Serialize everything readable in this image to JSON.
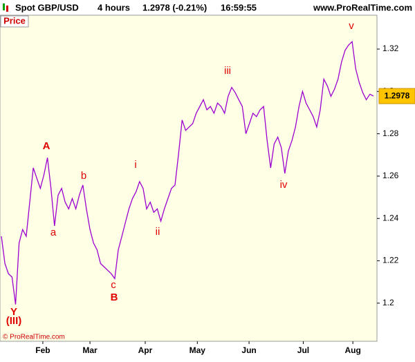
{
  "header": {
    "instrument": "Spot GBP/USD",
    "interval": "4 hours",
    "quote": "1.2978 (-0.21%)",
    "time": "16:59:55",
    "site": "www.ProRealTime.com"
  },
  "chart_data": {
    "type": "line",
    "panel_label": "Price",
    "copyright": "© ProRealTime.com",
    "series": [
      {
        "color": "#9b00d0",
        "values": [
          1.2316,
          1.2187,
          1.2139,
          1.2123,
          1.1994,
          1.2284,
          1.2348,
          1.2316,
          1.2477,
          1.2639,
          1.259,
          1.2542,
          1.2606,
          1.2687,
          1.2542,
          1.2365,
          1.251,
          1.2542,
          1.2477,
          1.2445,
          1.2494,
          1.2445,
          1.251,
          1.2558,
          1.2445,
          1.2348,
          1.2284,
          1.2252,
          1.2187,
          1.2171,
          1.2155,
          1.2139,
          1.2116,
          1.2252,
          1.2316,
          1.2381,
          1.2445,
          1.2494,
          1.2526,
          1.2574,
          1.2542,
          1.2445,
          1.2477,
          1.2429,
          1.2445,
          1.2387,
          1.2445,
          1.2494,
          1.2542,
          1.2558,
          1.2703,
          1.2865,
          1.2816,
          1.2832,
          1.2848,
          1.2897,
          1.2929,
          1.2961,
          1.2913,
          1.2929,
          1.2897,
          1.2945,
          1.2929,
          1.2897,
          1.2977,
          1.3019,
          1.2994,
          1.2961,
          1.2929,
          1.28,
          1.2848,
          1.2897,
          1.2881,
          1.2913,
          1.2929,
          1.2768,
          1.2639,
          1.2752,
          1.2784,
          1.2735,
          1.2613,
          1.2719,
          1.2768,
          1.2832,
          1.2929,
          1.3,
          1.2945,
          1.2913,
          1.2881,
          1.2832,
          1.2913,
          1.3058,
          1.3026,
          1.2977,
          1.301,
          1.3058,
          1.3139,
          1.3194,
          1.3219,
          1.3235,
          1.3106,
          1.3042,
          1.2994,
          1.2961,
          1.2987,
          1.2978
        ]
      }
    ],
    "last_price": 1.2978,
    "xlim": [
      0,
      106
    ],
    "xticks": [
      {
        "value": 11.7,
        "label": "Feb"
      },
      {
        "value": 25,
        "label": "Mar"
      },
      {
        "value": 40.6,
        "label": "Apr"
      },
      {
        "value": 55.3,
        "label": "May"
      },
      {
        "value": 69.9,
        "label": "Jun"
      },
      {
        "value": 85.2,
        "label": "Jul"
      },
      {
        "value": 99.2,
        "label": "Aug"
      }
    ],
    "ylim": [
      1.182,
      1.336
    ],
    "yticks": [
      1.2,
      1.22,
      1.24,
      1.26,
      1.28,
      1.3,
      1.32
    ],
    "annotations": [
      "A",
      "a",
      "b",
      "c",
      "B",
      "i",
      "ii",
      "iii",
      "iv",
      "v",
      "Y",
      "(III)"
    ]
  }
}
